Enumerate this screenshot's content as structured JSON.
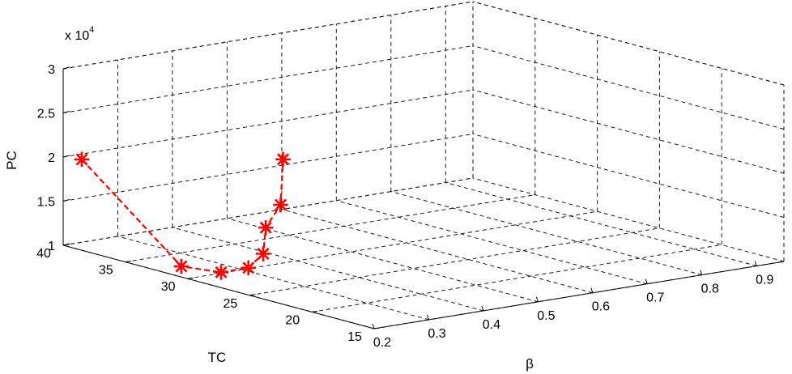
{
  "chart_data": {
    "type": "line3d",
    "x_axis": {
      "label": "β",
      "ticks": [
        "0.2",
        "0.3",
        "0.4",
        "0.5",
        "0.6",
        "0.7",
        "0.8",
        "0.9"
      ],
      "range": [
        0.2,
        0.95
      ]
    },
    "y_axis": {
      "label": "TC",
      "ticks": [
        "15",
        "20",
        "25",
        "30",
        "35",
        "40"
      ],
      "range": [
        15,
        40
      ]
    },
    "z_axis": {
      "label": "PC",
      "ticks": [
        "1",
        "1.5",
        "2",
        "2.5",
        "3"
      ],
      "range": [
        1,
        3
      ],
      "exponent": "x 10",
      "exponent_power": "4"
    },
    "grid": true,
    "series": [
      {
        "color": "#ff0000",
        "marker": "asterisk",
        "line": "dashed",
        "points": [
          {
            "beta": 0.2,
            "tc": 38.5,
            "pc": 2.03
          },
          {
            "beta": 0.2,
            "tc": 30.5,
            "pc": 1.12
          },
          {
            "beta": 0.25,
            "tc": 29.5,
            "pc": 1.04
          },
          {
            "beta": 0.3,
            "tc": 29.5,
            "pc": 1.04
          },
          {
            "beta": 0.35,
            "tc": 30.5,
            "pc": 1.11
          },
          {
            "beta": 0.4,
            "tc": 32.5,
            "pc": 1.28
          },
          {
            "beta": 0.45,
            "tc": 33.5,
            "pc": 1.45
          },
          {
            "beta": 0.5,
            "tc": 35.5,
            "pc": 1.84
          }
        ]
      }
    ]
  }
}
